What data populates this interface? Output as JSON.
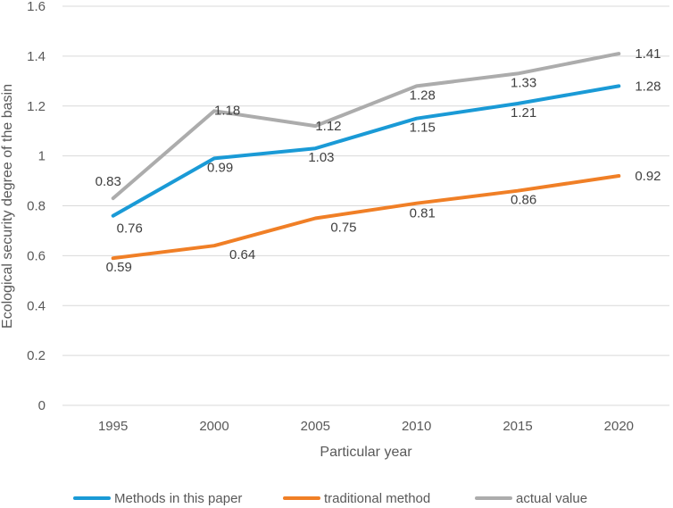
{
  "chart_data": {
    "type": "line",
    "title": "",
    "xlabel": "Particular year",
    "ylabel": "Ecological security degree of the basin",
    "categories": [
      "1995",
      "2000",
      "2005",
      "2010",
      "2015",
      "2020"
    ],
    "ylim": [
      0,
      1.6
    ],
    "yticks": [
      0,
      0.2,
      0.4,
      0.6,
      0.8,
      1,
      1.2,
      1.4,
      1.6
    ],
    "ytick_labels": [
      "0",
      "0.2",
      "0.4",
      "0.6",
      "0.8",
      "1",
      "1.2",
      "1.4",
      "1.6"
    ],
    "grid": true,
    "legend_position": "bottom",
    "series": [
      {
        "name": "Methods in this paper",
        "color": "#1a9ad6",
        "values": [
          0.76,
          0.99,
          1.03,
          1.15,
          1.21,
          1.28
        ],
        "labels": [
          "0.76",
          "0.99",
          "1.03",
          "1.15",
          "1.21",
          "1.28"
        ]
      },
      {
        "name": "traditional method",
        "color": "#f07f26",
        "values": [
          0.59,
          0.64,
          0.75,
          0.81,
          0.86,
          0.92
        ],
        "labels": [
          "0.59",
          "0.64",
          "0.75",
          "0.81",
          "0.86",
          "0.92"
        ]
      },
      {
        "name": "actual value",
        "color": "#acacac",
        "values": [
          0.83,
          1.18,
          1.12,
          1.28,
          1.33,
          1.41
        ],
        "labels": [
          "0.83",
          "1.18",
          "1.12",
          "1.28",
          "1.33",
          "1.41"
        ]
      }
    ]
  }
}
